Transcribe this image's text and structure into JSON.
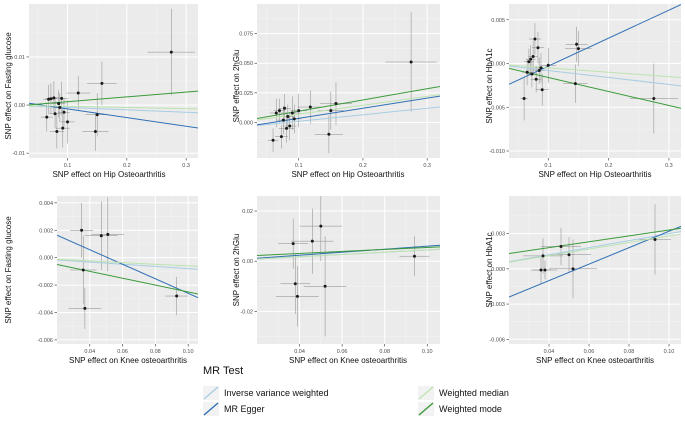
{
  "colors": {
    "panel_bg": "#ebebeb",
    "grid_major": "#ffffff",
    "grid_minor": "#f4f4f4",
    "ivw": "#a8cde2",
    "egger": "#2f6fb5",
    "wmedian": "#bde3b0",
    "wmode": "#3a9a3a",
    "point": "#1a1a1a",
    "errorbar": "#888888",
    "tick_text": "#4d4d4d",
    "axis_title": "#111111"
  },
  "legend": {
    "title": "MR Test",
    "entries": [
      {
        "key": "ivw",
        "label": "Inverse variance weighted"
      },
      {
        "key": "egger",
        "label": "MR Egger"
      },
      {
        "key": "wmedian",
        "label": "Weighted median"
      },
      {
        "key": "wmode",
        "label": "Weighted mode"
      }
    ]
  },
  "chart_data": [
    {
      "type": "scatter",
      "xlabel": "SNP effect on Hip Osteoarthritis",
      "ylabel": "SNP effect on Fasting glucose",
      "xlim": [
        0.035,
        0.32
      ],
      "ylim": [
        -0.011,
        0.021
      ],
      "xticks": [
        0.1,
        0.2,
        0.3
      ],
      "xtick_labels": [
        "0.1",
        "0.2",
        "0.3"
      ],
      "yticks": [
        -0.01,
        0.0,
        0.01
      ],
      "ytick_labels": [
        "-0.01",
        "0.00",
        "0.01"
      ],
      "points": [
        {
          "x": 0.065,
          "y": -0.0025,
          "xerr": 0.01,
          "yerr": 0.003
        },
        {
          "x": 0.068,
          "y": 0.0012,
          "xerr": 0.009,
          "yerr": 0.003
        },
        {
          "x": 0.072,
          "y": 0.0013,
          "xerr": 0.01,
          "yerr": 0.0032
        },
        {
          "x": 0.077,
          "y": 0.0015,
          "xerr": 0.009,
          "yerr": 0.0035
        },
        {
          "x": 0.079,
          "y": -0.0018,
          "xerr": 0.01,
          "yerr": 0.003
        },
        {
          "x": 0.082,
          "y": -0.0055,
          "xerr": 0.012,
          "yerr": 0.0035
        },
        {
          "x": 0.085,
          "y": 0.0003,
          "xerr": 0.011,
          "yerr": 0.0028
        },
        {
          "x": 0.087,
          "y": -0.0005,
          "xerr": 0.01,
          "yerr": 0.003
        },
        {
          "x": 0.09,
          "y": 0.0014,
          "xerr": 0.011,
          "yerr": 0.0035
        },
        {
          "x": 0.092,
          "y": -0.0048,
          "xerr": 0.012,
          "yerr": 0.004
        },
        {
          "x": 0.094,
          "y": -0.0015,
          "xerr": 0.01,
          "yerr": 0.003
        },
        {
          "x": 0.1,
          "y": -0.0035,
          "xerr": 0.012,
          "yerr": 0.0045
        },
        {
          "x": 0.118,
          "y": 0.0025,
          "xerr": 0.02,
          "yerr": 0.0035
        },
        {
          "x": 0.147,
          "y": -0.0055,
          "xerr": 0.022,
          "yerr": 0.004
        },
        {
          "x": 0.15,
          "y": -0.002,
          "xerr": 0.02,
          "yerr": 0.0045
        },
        {
          "x": 0.158,
          "y": 0.0045,
          "xerr": 0.025,
          "yerr": 0.0045
        },
        {
          "x": 0.275,
          "y": 0.011,
          "xerr": 0.04,
          "yerr": 0.009
        }
      ],
      "lines": [
        {
          "key": "ivw",
          "slope": -0.005,
          "intercept": 0.0
        },
        {
          "key": "egger",
          "slope": -0.018,
          "intercept": 0.001
        },
        {
          "key": "wmedian",
          "slope": -0.0025,
          "intercept": 0.0
        },
        {
          "key": "wmode",
          "slope": 0.01,
          "intercept": -0.0003
        }
      ]
    },
    {
      "type": "scatter",
      "xlabel": "SNP effect on Hip Osteoarthritis",
      "ylabel": "SNP effect on 2hGlu",
      "xlim": [
        0.035,
        0.32
      ],
      "ylim": [
        -0.03,
        0.1
      ],
      "xticks": [
        0.1,
        0.2,
        0.3
      ],
      "xtick_labels": [
        "0.1",
        "0.2",
        "0.3"
      ],
      "yticks": [
        0.0,
        0.025,
        0.05,
        0.075
      ],
      "ytick_labels": [
        "0.000",
        "0.025",
        "0.050",
        "0.075"
      ],
      "points": [
        {
          "x": 0.06,
          "y": -0.015,
          "xerr": 0.008,
          "yerr": 0.01
        },
        {
          "x": 0.065,
          "y": 0.008,
          "xerr": 0.01,
          "yerr": 0.012
        },
        {
          "x": 0.07,
          "y": 0.01,
          "xerr": 0.009,
          "yerr": 0.01
        },
        {
          "x": 0.073,
          "y": -0.012,
          "xerr": 0.01,
          "yerr": 0.01
        },
        {
          "x": 0.076,
          "y": 0.002,
          "xerr": 0.01,
          "yerr": 0.012
        },
        {
          "x": 0.078,
          "y": 0.012,
          "xerr": 0.01,
          "yerr": 0.012
        },
        {
          "x": 0.081,
          "y": -0.005,
          "xerr": 0.012,
          "yerr": 0.012
        },
        {
          "x": 0.083,
          "y": 0.005,
          "xerr": 0.011,
          "yerr": 0.01
        },
        {
          "x": 0.086,
          "y": -0.003,
          "xerr": 0.01,
          "yerr": 0.012
        },
        {
          "x": 0.09,
          "y": 0.008,
          "xerr": 0.012,
          "yerr": 0.014
        },
        {
          "x": 0.093,
          "y": 0.003,
          "xerr": 0.011,
          "yerr": 0.012
        },
        {
          "x": 0.1,
          "y": 0.01,
          "xerr": 0.013,
          "yerr": 0.014
        },
        {
          "x": 0.118,
          "y": 0.013,
          "xerr": 0.02,
          "yerr": 0.014
        },
        {
          "x": 0.147,
          "y": -0.01,
          "xerr": 0.022,
          "yerr": 0.016
        },
        {
          "x": 0.15,
          "y": 0.01,
          "xerr": 0.02,
          "yerr": 0.016
        },
        {
          "x": 0.158,
          "y": 0.016,
          "xerr": 0.025,
          "yerr": 0.018
        },
        {
          "x": 0.275,
          "y": 0.051,
          "xerr": 0.04,
          "yerr": 0.042
        }
      ],
      "lines": [
        {
          "key": "ivw",
          "slope": 0.055,
          "intercept": -0.0045
        },
        {
          "key": "egger",
          "slope": 0.085,
          "intercept": -0.005
        },
        {
          "key": "wmedian",
          "slope": 0.075,
          "intercept": -0.0005
        },
        {
          "key": "wmode",
          "slope": 0.095,
          "intercept": 0.0
        }
      ]
    },
    {
      "type": "scatter",
      "xlabel": "SNP effect on Hip Osteoarthritis",
      "ylabel": "SNP effect on HbA1c",
      "xlim": [
        0.035,
        0.32
      ],
      "ylim": [
        -0.0108,
        0.0068
      ],
      "xticks": [
        0.1,
        0.2,
        0.3
      ],
      "xtick_labels": [
        "0.1",
        "0.2",
        "0.3"
      ],
      "yticks": [
        -0.01,
        -0.005,
        0.0,
        0.005
      ],
      "ytick_labels": [
        "-0.010",
        "-0.005",
        "0.000",
        "0.005"
      ],
      "points": [
        {
          "x": 0.06,
          "y": -0.004,
          "xerr": 0.006,
          "yerr": 0.0025
        },
        {
          "x": 0.065,
          "y": -0.001,
          "xerr": 0.008,
          "yerr": 0.0015
        },
        {
          "x": 0.068,
          "y": 0.0002,
          "xerr": 0.008,
          "yerr": 0.0015
        },
        {
          "x": 0.071,
          "y": 0.0005,
          "xerr": 0.008,
          "yerr": 0.0016
        },
        {
          "x": 0.073,
          "y": -0.0012,
          "xerr": 0.009,
          "yerr": 0.0015
        },
        {
          "x": 0.075,
          "y": 0.0008,
          "xerr": 0.008,
          "yerr": 0.0018
        },
        {
          "x": 0.078,
          "y": 0.0028,
          "xerr": 0.01,
          "yerr": 0.0018
        },
        {
          "x": 0.08,
          "y": -0.0018,
          "xerr": 0.009,
          "yerr": 0.0015
        },
        {
          "x": 0.083,
          "y": 0.0018,
          "xerr": 0.01,
          "yerr": 0.0018
        },
        {
          "x": 0.085,
          "y": -0.0008,
          "xerr": 0.009,
          "yerr": 0.0015
        },
        {
          "x": 0.088,
          "y": -0.0005,
          "xerr": 0.01,
          "yerr": 0.0017
        },
        {
          "x": 0.09,
          "y": -0.003,
          "xerr": 0.011,
          "yerr": 0.0018
        },
        {
          "x": 0.1,
          "y": -0.0002,
          "xerr": 0.013,
          "yerr": 0.002
        },
        {
          "x": 0.147,
          "y": 0.0022,
          "xerr": 0.018,
          "yerr": 0.002
        },
        {
          "x": 0.15,
          "y": 0.0017,
          "xerr": 0.022,
          "yerr": 0.002
        },
        {
          "x": 0.145,
          "y": -0.0023,
          "xerr": 0.02,
          "yerr": 0.0022
        },
        {
          "x": 0.275,
          "y": -0.004,
          "xerr": 0.04,
          "yerr": 0.004
        }
      ],
      "lines": [
        {
          "key": "ivw",
          "slope": -0.008,
          "intercept": 0.0
        },
        {
          "key": "egger",
          "slope": 0.032,
          "intercept": -0.0035
        },
        {
          "key": "wmedian",
          "slope": -0.005,
          "intercept": 0.0
        },
        {
          "key": "wmode",
          "slope": -0.016,
          "intercept": 0.0
        }
      ]
    },
    {
      "type": "scatter",
      "xlabel": "SNP effect on Knee osteoarthritis",
      "ylabel": "SNP effect on Fasting glucose",
      "xlim": [
        0.02,
        0.106
      ],
      "ylim": [
        -0.0063,
        0.0045
      ],
      "xticks": [
        0.04,
        0.06,
        0.08,
        0.1
      ],
      "xtick_labels": [
        "0.04",
        "0.06",
        "0.08",
        "0.10"
      ],
      "yticks": [
        -0.006,
        -0.004,
        -0.002,
        0.0,
        0.002,
        0.004
      ],
      "ytick_labels": [
        "-0.006",
        "-0.004",
        "-0.002",
        "0.000",
        "0.002",
        "0.004"
      ],
      "points": [
        {
          "x": 0.035,
          "y": 0.002,
          "xerr": 0.007,
          "yerr": 0.002
        },
        {
          "x": 0.036,
          "y": -0.0009,
          "xerr": 0.008,
          "yerr": 0.0025
        },
        {
          "x": 0.037,
          "y": -0.0037,
          "xerr": 0.01,
          "yerr": 0.0015
        },
        {
          "x": 0.047,
          "y": 0.0016,
          "xerr": 0.01,
          "yerr": 0.0025
        },
        {
          "x": 0.051,
          "y": 0.0017,
          "xerr": 0.01,
          "yerr": 0.0027
        },
        {
          "x": 0.093,
          "y": -0.0028,
          "xerr": 0.007,
          "yerr": 0.0014
        }
      ],
      "lines": [
        {
          "key": "ivw",
          "slope": -0.008,
          "intercept": 0.0
        },
        {
          "key": "egger",
          "slope": -0.053,
          "intercept": 0.0027
        },
        {
          "key": "wmedian",
          "slope": -0.006,
          "intercept": 0.0
        },
        {
          "key": "wmode",
          "slope": -0.025,
          "intercept": 0.0
        }
      ]
    },
    {
      "type": "scatter",
      "xlabel": "SNP effect on Knee osteoarthritis",
      "ylabel": "SNP effect on 2hGlu",
      "xlim": [
        0.02,
        0.106
      ],
      "ylim": [
        -0.033,
        0.026
      ],
      "xticks": [
        0.04,
        0.06,
        0.08,
        0.1
      ],
      "xtick_labels": [
        "0.04",
        "0.06",
        "0.08",
        "0.10"
      ],
      "yticks": [
        -0.02,
        0.0,
        0.02
      ],
      "ytick_labels": [
        "-0.02",
        "0.00",
        "0.02"
      ],
      "points": [
        {
          "x": 0.037,
          "y": 0.007,
          "xerr": 0.007,
          "yerr": 0.01
        },
        {
          "x": 0.038,
          "y": -0.009,
          "xerr": 0.007,
          "yerr": 0.012
        },
        {
          "x": 0.039,
          "y": -0.014,
          "xerr": 0.01,
          "yerr": 0.012
        },
        {
          "x": 0.046,
          "y": 0.008,
          "xerr": 0.01,
          "yerr": 0.013
        },
        {
          "x": 0.05,
          "y": 0.014,
          "xerr": 0.01,
          "yerr": 0.014
        },
        {
          "x": 0.052,
          "y": -0.01,
          "xerr": 0.01,
          "yerr": 0.02
        },
        {
          "x": 0.094,
          "y": 0.002,
          "xerr": 0.007,
          "yerr": 0.008
        }
      ],
      "lines": [
        {
          "key": "ivw",
          "slope": 0.045,
          "intercept": 0.0
        },
        {
          "key": "egger",
          "slope": 0.06,
          "intercept": 0.0
        },
        {
          "key": "wmedian",
          "slope": 0.045,
          "intercept": 0.0
        },
        {
          "key": "wmode",
          "slope": 0.04,
          "intercept": 0.0015
        }
      ]
    },
    {
      "type": "scatter",
      "xlabel": "SNP effect on Knee osteoarthritis",
      "ylabel": "SNP effect on HbA1c",
      "xlim": [
        0.02,
        0.106
      ],
      "ylim": [
        -0.0064,
        0.0062
      ],
      "xticks": [
        0.04,
        0.06,
        0.08,
        0.1
      ],
      "xtick_labels": [
        "0.04",
        "0.06",
        "0.08",
        "0.10"
      ],
      "yticks": [
        -0.006,
        -0.003,
        0.0,
        0.003
      ],
      "ytick_labels": [
        "-0.006",
        "-0.003",
        "0.000",
        "0.003"
      ],
      "points": [
        {
          "x": 0.036,
          "y": -0.0001,
          "xerr": 0.005,
          "yerr": 0.0012
        },
        {
          "x": 0.037,
          "y": 0.0011,
          "xerr": 0.01,
          "yerr": 0.0015
        },
        {
          "x": 0.038,
          "y": -0.0001,
          "xerr": 0.006,
          "yerr": 0.0008
        },
        {
          "x": 0.046,
          "y": 0.0019,
          "xerr": 0.01,
          "yerr": 0.0016
        },
        {
          "x": 0.05,
          "y": 0.0012,
          "xerr": 0.011,
          "yerr": 0.0015
        },
        {
          "x": 0.052,
          "y": 0.0,
          "xerr": 0.012,
          "yerr": 0.0025
        },
        {
          "x": 0.093,
          "y": 0.0025,
          "xerr": 0.008,
          "yerr": 0.003
        }
      ],
      "lines": [
        {
          "key": "ivw",
          "slope": 0.03,
          "intercept": 0.0
        },
        {
          "key": "egger",
          "slope": 0.07,
          "intercept": -0.0038
        },
        {
          "key": "wmedian",
          "slope": 0.028,
          "intercept": 0.0
        },
        {
          "key": "wmode",
          "slope": 0.025,
          "intercept": 0.0008
        }
      ]
    }
  ]
}
